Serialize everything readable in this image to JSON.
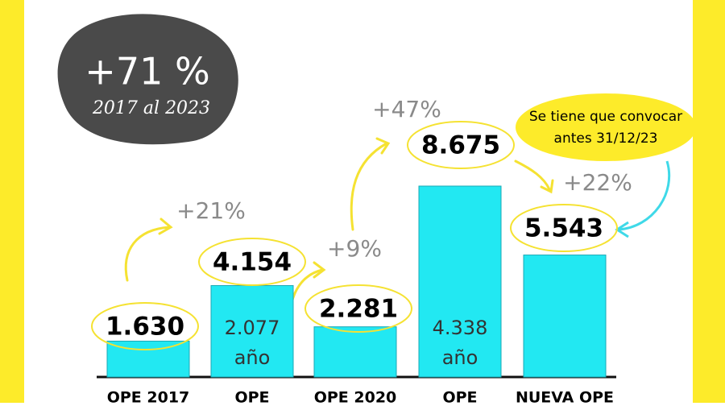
{
  "chart_data": {
    "type": "bar",
    "categories": [
      "OPE 2017",
      "OPE",
      "OPE 2020",
      "OPE",
      "NUEVA OPE"
    ],
    "values": [
      1630,
      4154,
      2281,
      8675,
      5543
    ],
    "value_labels": [
      "1.630",
      "4.154",
      "2.281",
      "8.675",
      "5.543"
    ],
    "color": "#22e8f2",
    "badge": {
      "value": "+71 %",
      "period": "2017 al 2023"
    },
    "changes": [
      "+21%",
      "+9%",
      "+47%",
      "+22%"
    ],
    "bar_notes": [
      [
        "2.077",
        "año"
      ],
      [
        "4.338",
        "año"
      ]
    ],
    "callout": [
      "Se tiene que convocar",
      "antes 31/12/23"
    ]
  }
}
